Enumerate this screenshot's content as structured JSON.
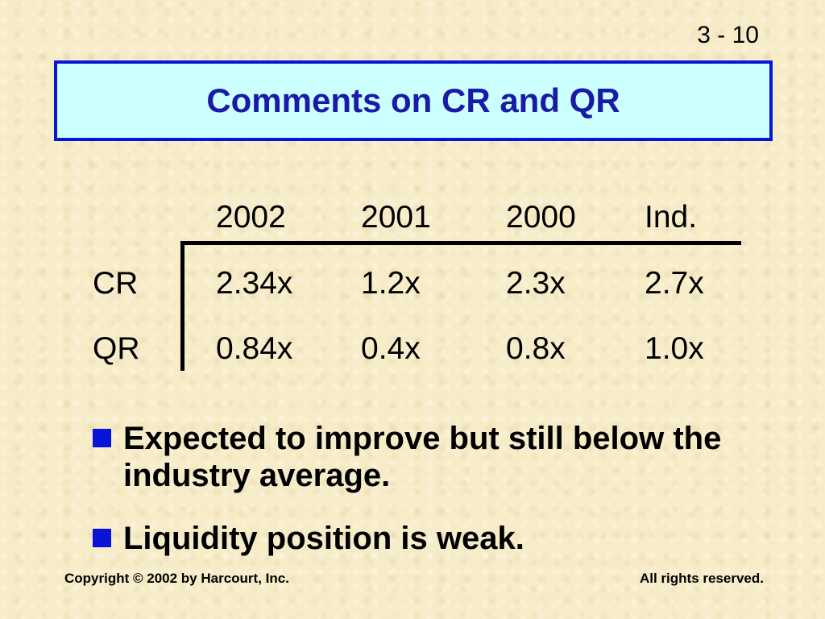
{
  "slide_number": "3 - 10",
  "title": "Comments on CR and QR",
  "table": {
    "columns": [
      "2002",
      "2001",
      "2000",
      "Ind."
    ],
    "rows": [
      {
        "label": "CR",
        "values": [
          "2.34x",
          "1.2x",
          "2.3x",
          "2.7x"
        ]
      },
      {
        "label": "QR",
        "values": [
          "0.84x",
          "0.4x",
          "0.8x",
          "1.0x"
        ]
      }
    ]
  },
  "bullets": [
    "Expected to improve but still below the industry average.",
    "Liquidity position is weak."
  ],
  "footer": {
    "copyright": "Copyright © 2002 by Harcourt, Inc.",
    "rights": "All rights reserved."
  },
  "colors": {
    "title_fill": "#ccffff",
    "title_border": "#0a14d8",
    "title_text": "#1a1aa8",
    "bullet_marker": "#0a14d8",
    "background": "#f7ecc8"
  }
}
